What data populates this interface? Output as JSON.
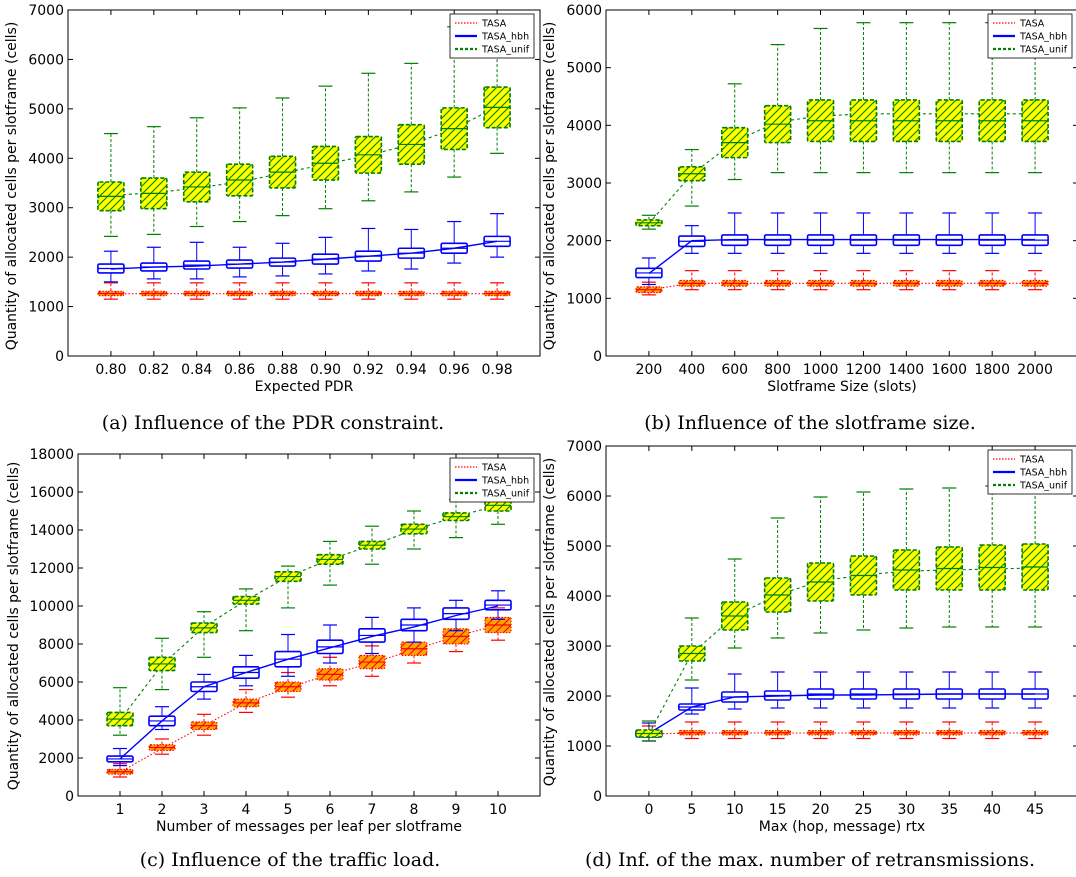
{
  "colors": {
    "tasa": "#ff0000",
    "hbh": "#0000ff",
    "unif": "#008000",
    "tasa_fill": "#ffa500",
    "unif_fill": "#ffff00"
  },
  "chart_data": [
    {
      "type": "box",
      "caption": "(a) Influence of the PDR constraint.",
      "xlabel": "Expected PDR",
      "ylabel": "Quantity of allocated cells per slotframe (cells)",
      "ylim": [
        0,
        7000
      ],
      "yticks": [
        0,
        1000,
        2000,
        3000,
        4000,
        5000,
        6000,
        7000
      ],
      "categories": [
        "0.80",
        "0.82",
        "0.84",
        "0.86",
        "0.88",
        "0.90",
        "0.92",
        "0.94",
        "0.96",
        "0.98"
      ],
      "legend": {
        "position": "top-right",
        "entries": [
          "TASA",
          "TASA_hbh",
          "TASA_unif"
        ]
      },
      "series": [
        {
          "name": "TASA",
          "q1": [
            1220,
            1220,
            1220,
            1220,
            1220,
            1220,
            1220,
            1220,
            1220,
            1220
          ],
          "q3": [
            1310,
            1310,
            1310,
            1310,
            1310,
            1310,
            1310,
            1310,
            1310,
            1310
          ],
          "lo": [
            1150,
            1150,
            1150,
            1150,
            1150,
            1150,
            1150,
            1150,
            1150,
            1150
          ],
          "hi": [
            1480,
            1480,
            1480,
            1480,
            1480,
            1480,
            1480,
            1480,
            1480,
            1480
          ],
          "mean": [
            1260,
            1260,
            1260,
            1260,
            1260,
            1260,
            1260,
            1260,
            1260,
            1260
          ]
        },
        {
          "name": "TASA_hbh",
          "q1": [
            1680,
            1720,
            1760,
            1780,
            1820,
            1860,
            1920,
            1980,
            2080,
            2220
          ],
          "q3": [
            1860,
            1880,
            1920,
            1940,
            1980,
            2060,
            2120,
            2180,
            2280,
            2420
          ],
          "lo": [
            1500,
            1560,
            1560,
            1600,
            1620,
            1660,
            1720,
            1760,
            1880,
            2000
          ],
          "hi": [
            2120,
            2200,
            2300,
            2200,
            2280,
            2400,
            2580,
            2560,
            2720,
            2880
          ],
          "mean": [
            1760,
            1800,
            1820,
            1860,
            1900,
            1960,
            2020,
            2080,
            2180,
            2320
          ]
        },
        {
          "name": "TASA_unif",
          "q1": [
            2940,
            2980,
            3120,
            3240,
            3400,
            3560,
            3700,
            3880,
            4180,
            4620
          ],
          "q3": [
            3520,
            3600,
            3720,
            3880,
            4040,
            4240,
            4440,
            4680,
            5020,
            5440
          ],
          "lo": [
            2420,
            2460,
            2620,
            2720,
            2840,
            2980,
            3140,
            3320,
            3620,
            4100
          ],
          "hi": [
            4500,
            4640,
            4820,
            5020,
            5220,
            5460,
            5720,
            5920,
            6660,
            6600
          ],
          "mean": [
            3250,
            3300,
            3400,
            3520,
            3700,
            3880,
            4060,
            4280,
            4600,
            5040
          ]
        }
      ]
    },
    {
      "type": "box",
      "caption": "(b) Influence of the slotframe size.",
      "xlabel": "Slotframe Size (slots)",
      "ylabel": "Quantity of allocated cells per slotframe (cells)",
      "ylim": [
        0,
        6000
      ],
      "yticks": [
        0,
        1000,
        2000,
        3000,
        4000,
        5000,
        6000
      ],
      "categories": [
        "200",
        "400",
        "600",
        "800",
        "1000",
        "1200",
        "1400",
        "1600",
        "1800",
        "2000"
      ],
      "legend": {
        "position": "top-right",
        "entries": [
          "TASA",
          "TASA_hbh",
          "TASA_unif"
        ]
      },
      "series": [
        {
          "name": "TASA",
          "q1": [
            1100,
            1210,
            1210,
            1210,
            1210,
            1210,
            1210,
            1210,
            1210,
            1210
          ],
          "q3": [
            1200,
            1310,
            1310,
            1310,
            1310,
            1310,
            1310,
            1310,
            1310,
            1310
          ],
          "lo": [
            1060,
            1150,
            1150,
            1150,
            1150,
            1150,
            1150,
            1150,
            1150,
            1150
          ],
          "hi": [
            1280,
            1480,
            1480,
            1480,
            1480,
            1480,
            1480,
            1480,
            1480,
            1480
          ],
          "mean": [
            1150,
            1260,
            1260,
            1260,
            1260,
            1260,
            1260,
            1260,
            1260,
            1260
          ]
        },
        {
          "name": "TASA_hbh",
          "q1": [
            1360,
            1900,
            1920,
            1920,
            1920,
            1920,
            1920,
            1920,
            1920,
            1920
          ],
          "q3": [
            1520,
            2080,
            2100,
            2100,
            2100,
            2100,
            2100,
            2100,
            2100,
            2100
          ],
          "lo": [
            1240,
            1780,
            1780,
            1780,
            1780,
            1780,
            1780,
            1780,
            1780,
            1780
          ],
          "hi": [
            1700,
            2260,
            2480,
            2480,
            2480,
            2480,
            2480,
            2480,
            2480,
            2480
          ],
          "mean": [
            1430,
            2000,
            2020,
            2020,
            2020,
            2020,
            2020,
            2020,
            2020,
            2020
          ]
        },
        {
          "name": "TASA_unif",
          "q1": [
            2260,
            3040,
            3440,
            3700,
            3720,
            3720,
            3720,
            3720,
            3720,
            3720
          ],
          "q3": [
            2360,
            3280,
            3960,
            4340,
            4440,
            4440,
            4440,
            4440,
            4440,
            4440
          ],
          "lo": [
            2200,
            2600,
            3060,
            3180,
            3180,
            3180,
            3180,
            3180,
            3180,
            3180
          ],
          "hi": [
            2440,
            3580,
            4720,
            5400,
            5680,
            5780,
            5780,
            5780,
            5780,
            5780
          ],
          "mean": [
            2300,
            3150,
            3720,
            4060,
            4160,
            4200,
            4200,
            4200,
            4200,
            4200
          ]
        }
      ]
    },
    {
      "type": "box",
      "caption": "(c) Influence of the traffic load.",
      "xlabel": "Number of messages per leaf per slotframe",
      "ylabel": "Quantity of allocated cells per slotframe (cells)",
      "ylim": [
        0,
        18000
      ],
      "yticks": [
        0,
        2000,
        4000,
        6000,
        8000,
        10000,
        12000,
        14000,
        16000,
        18000
      ],
      "categories": [
        "1",
        "2",
        "3",
        "4",
        "5",
        "6",
        "7",
        "8",
        "9",
        "10"
      ],
      "legend": {
        "position": "top-right",
        "entries": [
          "TASA",
          "TASA_hbh",
          "TASA_unif"
        ]
      },
      "series": [
        {
          "name": "TASA",
          "q1": [
            1150,
            2400,
            3500,
            4700,
            5500,
            6100,
            6700,
            7400,
            8000,
            8600
          ],
          "q3": [
            1400,
            2700,
            3900,
            5100,
            6000,
            6700,
            7400,
            8100,
            8800,
            9400
          ],
          "lo": [
            1000,
            2200,
            3200,
            4400,
            5200,
            5800,
            6300,
            7000,
            7600,
            8200
          ],
          "hi": [
            1700,
            3000,
            4300,
            5600,
            6500,
            7300,
            7900,
            8700,
            9300,
            9900
          ],
          "mean": [
            1250,
            2500,
            3700,
            4900,
            5700,
            6400,
            7000,
            7700,
            8400,
            9000
          ]
        },
        {
          "name": "TASA_hbh",
          "q1": [
            1800,
            3700,
            5500,
            6200,
            6800,
            7500,
            8100,
            8700,
            9300,
            9800
          ],
          "q3": [
            2100,
            4200,
            6000,
            6800,
            7600,
            8200,
            8800,
            9300,
            9900,
            10300
          ],
          "lo": [
            1600,
            3500,
            5100,
            5800,
            6300,
            7000,
            7500,
            8100,
            8700,
            9300
          ],
          "hi": [
            2500,
            4700,
            6400,
            7400,
            8500,
            9000,
            9400,
            9900,
            10300,
            10800
          ],
          "mean": [
            1950,
            3950,
            5750,
            6500,
            7200,
            7800,
            8400,
            8900,
            9500,
            10000
          ]
        },
        {
          "name": "TASA_unif",
          "q1": [
            3700,
            6600,
            8600,
            10100,
            11300,
            12200,
            13000,
            13800,
            14500,
            15000
          ],
          "q3": [
            4400,
            7300,
            9100,
            10500,
            11800,
            12700,
            13400,
            14300,
            14900,
            15600
          ],
          "lo": [
            3200,
            5600,
            7300,
            8700,
            9900,
            11100,
            12200,
            13000,
            13600,
            14300
          ],
          "hi": [
            5700,
            8300,
            9700,
            10900,
            12100,
            13400,
            14200,
            15000,
            15600,
            16400
          ],
          "mean": [
            4000,
            6900,
            8900,
            10300,
            11550,
            12450,
            13200,
            14000,
            14700,
            15300
          ]
        }
      ]
    },
    {
      "type": "box",
      "caption": "(d) Inf. of the max. number of retransmissions.",
      "xlabel": "Max (hop, message) rtx",
      "ylabel": "Quantity of allocated cells per slotframe (cells)",
      "ylim": [
        0,
        7000
      ],
      "yticks": [
        0,
        1000,
        2000,
        3000,
        4000,
        5000,
        6000,
        7000
      ],
      "categories": [
        "0",
        "5",
        "10",
        "15",
        "20",
        "25",
        "30",
        "35",
        "40",
        "45"
      ],
      "legend": {
        "position": "top-right",
        "entries": [
          "TASA",
          "TASA_hbh",
          "TASA_unif"
        ]
      },
      "series": [
        {
          "name": "TASA",
          "q1": [
            1180,
            1220,
            1220,
            1220,
            1220,
            1220,
            1220,
            1220,
            1220,
            1220
          ],
          "q3": [
            1300,
            1310,
            1310,
            1310,
            1310,
            1310,
            1310,
            1310,
            1310,
            1310
          ],
          "lo": [
            1100,
            1150,
            1150,
            1150,
            1150,
            1150,
            1150,
            1150,
            1150,
            1150
          ],
          "hi": [
            1400,
            1480,
            1480,
            1480,
            1480,
            1480,
            1480,
            1480,
            1480,
            1480
          ],
          "mean": [
            1240,
            1260,
            1260,
            1260,
            1260,
            1260,
            1260,
            1260,
            1260,
            1260
          ]
        },
        {
          "name": "TASA_hbh",
          "q1": [
            1180,
            1720,
            1880,
            1920,
            1940,
            1940,
            1940,
            1940,
            1940,
            1940
          ],
          "q3": [
            1300,
            1840,
            2080,
            2100,
            2140,
            2140,
            2140,
            2140,
            2140,
            2140
          ],
          "lo": [
            1100,
            1640,
            1740,
            1760,
            1760,
            1760,
            1760,
            1760,
            1760,
            1760
          ],
          "hi": [
            1460,
            2160,
            2440,
            2480,
            2480,
            2480,
            2480,
            2480,
            2480,
            2480
          ],
          "mean": [
            1250,
            1780,
            1980,
            2000,
            2020,
            2020,
            2030,
            2040,
            2040,
            2040
          ]
        },
        {
          "name": "TASA_unif",
          "q1": [
            1180,
            2700,
            3320,
            3680,
            3900,
            4020,
            4120,
            4120,
            4120,
            4120
          ],
          "q3": [
            1320,
            3000,
            3880,
            4360,
            4660,
            4800,
            4920,
            4980,
            5020,
            5040
          ],
          "lo": [
            1100,
            2320,
            2960,
            3160,
            3260,
            3320,
            3360,
            3380,
            3380,
            3380
          ],
          "hi": [
            1500,
            3560,
            4740,
            5560,
            5980,
            6080,
            6140,
            6160,
            6200,
            6260
          ],
          "mean": [
            1240,
            2850,
            3600,
            4020,
            4300,
            4420,
            4500,
            4520,
            4540,
            4560
          ]
        }
      ]
    }
  ]
}
